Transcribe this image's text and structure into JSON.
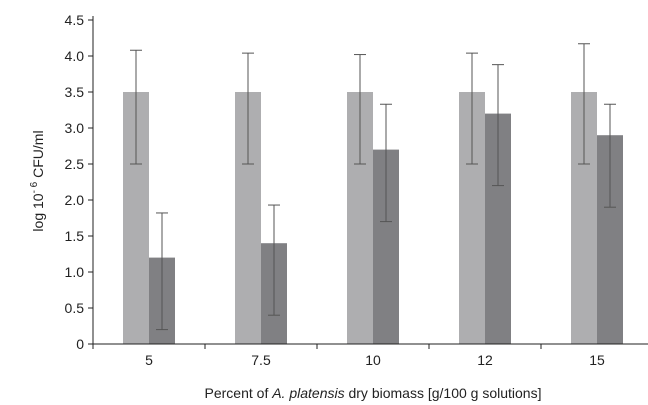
{
  "chart_data": {
    "type": "bar",
    "categories": [
      "5",
      "7.5",
      "10",
      "12",
      "15"
    ],
    "series": [
      {
        "values": [
          3.5,
          3.5,
          3.5,
          3.5,
          3.5
        ],
        "error_low": [
          2.5,
          2.5,
          2.5,
          2.5,
          2.5
        ],
        "error_high": [
          4.08,
          4.04,
          4.02,
          4.04,
          4.17
        ],
        "color": "#aeaeb0"
      },
      {
        "values": [
          1.2,
          1.4,
          2.7,
          3.2,
          2.9
        ],
        "error_low": [
          0.2,
          0.4,
          1.7,
          2.2,
          1.9
        ],
        "error_high": [
          1.82,
          1.93,
          3.33,
          3.88,
          3.33
        ],
        "color": "#808083"
      }
    ],
    "y_ticks": [
      "0",
      "0.5",
      "1.0",
      "1.5",
      "2.0",
      "2.5",
      "3.0",
      "3.5",
      "4.0",
      "4.5"
    ],
    "ylim": [
      0,
      4.5
    ],
    "xlabel_parts": [
      "Percent of ",
      "A. platensis",
      " dry biomass [g/100 g solutions]"
    ],
    "ylabel_parts": [
      "log 10",
      "- 6",
      " CFU/ml"
    ],
    "grid": false,
    "legend": "none"
  }
}
